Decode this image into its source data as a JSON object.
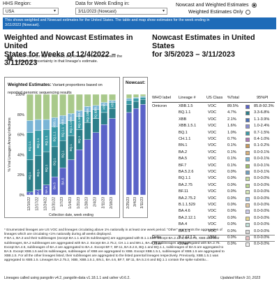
{
  "controls": {
    "region_label": "HHS Region:",
    "region_value": "USA",
    "week_label": "Data for Week Ending in:",
    "week_value": "3/11/2023 (Nowcast)",
    "radio_1": "Nowcast and Weighted Estimates",
    "radio_2": "Weighted Estimates Only"
  },
  "banner": {
    "line1": "This shows weighted and Nowcast estimates for the United States. The table and map show estimates for the week ending in",
    "line2": "3/11/2023 (Nowcast)."
  },
  "left": {
    "title_line1": "Weighted and Nowcast Estimates in United",
    "title_line2": "States for Weeks of 12/4/2022 – 3/11/2023",
    "hint_line1": "Hover over (or tap in mobile) any lineage of interest to see the",
    "hint_line2": "amount of uncertainty in that lineage's estimate."
  },
  "right": {
    "title_line1": "Nowcast Estimates in United States",
    "title_line2": "for 3/5/2023 – 3/11/2023"
  },
  "chart_data": {
    "type": "bar",
    "title": "Weighted Estimates: Variant proportions based on reported genomic sequencing results",
    "title_line1": "Weighted Estimates:",
    "title_line1_rest": " Variant proportions based on",
    "title_line2": "reported genomic sequencing results",
    "nowcast_title": "Nowcast:",
    "ylabel": "% Viral Lineages Among Infections",
    "xlabel": "Collection date, week ending",
    "ylim": [
      0,
      100
    ],
    "y_ticks": [
      "100%",
      "80%",
      "60%",
      "40%",
      "20%",
      "0%"
    ],
    "categories": [
      "12/10/22",
      "12/17/22",
      "12/24/22",
      "12/31/22",
      "1/7/23",
      "1/14/23",
      "1/21/23",
      "1/28/23",
      "2/4/23",
      "2/11/23",
      "2/18/23"
    ],
    "nowcast_categories": [
      "2/25/23",
      "3/4/23",
      "3/11/23"
    ],
    "series": [
      {
        "name": "XBB.1.5",
        "values": [
          3,
          5,
          10,
          18,
          27,
          35,
          45,
          55,
          62,
          70,
          76
        ],
        "nowcast": [
          82,
          86,
          90
        ]
      },
      {
        "name": "BQ.1.1",
        "values": [
          32,
          34,
          33,
          30,
          27,
          24,
          20,
          17,
          14,
          12,
          10
        ],
        "nowcast": [
          8,
          7,
          5
        ]
      },
      {
        "name": "BQ.1",
        "values": [
          27,
          25,
          22,
          20,
          17,
          15,
          13,
          11,
          9,
          7,
          6
        ],
        "nowcast": [
          4,
          3,
          2
        ]
      },
      {
        "name": "BA.5",
        "values": [
          12,
          11,
          10,
          9,
          8,
          7,
          6,
          5,
          4,
          3,
          2
        ],
        "nowcast": [
          2,
          1,
          1
        ]
      },
      {
        "name": "Other",
        "values": [
          26,
          25,
          25,
          23,
          21,
          19,
          16,
          12,
          11,
          8,
          6
        ],
        "nowcast": [
          4,
          3,
          2
        ]
      }
    ],
    "bar_labels": [
      [
        "BA.5",
        "BQ.1",
        "BQ.1.1",
        "",
        ""
      ],
      [
        "BA.5",
        "BQ.1",
        "BQ.1.1",
        "",
        ""
      ],
      [
        "BA.5",
        "BQ.1",
        "BQ.1.1",
        "",
        ""
      ],
      [
        "BA.5",
        "BQ.1",
        "BQ.1.1",
        "XBB.1.5",
        ""
      ],
      [
        "BA.5",
        "BQ.1",
        "BQ.1.1",
        "XBB.1.5",
        ""
      ],
      [
        "",
        "BQ.1",
        "BQ.1.1",
        "XBB.1.5",
        ""
      ],
      [
        "",
        "BQ.1",
        "BQ.1.1",
        "XBB.1.5",
        ""
      ],
      [
        "",
        "",
        "BQ.1.1",
        "XBB.1.5",
        ""
      ],
      [
        "",
        "",
        "BQ.1.1",
        "XBB.1.5",
        ""
      ],
      [
        "",
        "",
        "",
        "XBB.1.5",
        ""
      ],
      [
        "",
        "",
        "",
        "XBB.1.5",
        ""
      ]
    ],
    "colors": {
      "XBB.1.5": "#5a63c8",
      "BQ.1.1": "#2d7f8a",
      "BQ.1": "#3a9aa6",
      "BA.5": "#7ab5d6",
      "Other": "#a9c98b",
      "other_segments": [
        "#9fbf6b",
        "#b9d68f",
        "#c4da9d",
        "#6f9fbf",
        "#d3e5b6"
      ]
    }
  },
  "table": {
    "headers": [
      "WHO label",
      "Lineage #",
      "US Class",
      "%Total",
      "95%PI"
    ],
    "rows": [
      {
        "who": "Omicron",
        "lineage": "XBB.1.5",
        "class": "VOC",
        "pct": "89.5%",
        "pi": "85.8-92.3%",
        "color": "#5a63c8"
      },
      {
        "who": "",
        "lineage": "BQ.1.1",
        "class": "VOC",
        "pct": "4.7%",
        "pi": "3.3-6.8%",
        "color": "#2d7f8a"
      },
      {
        "who": "",
        "lineage": "XBB",
        "class": "VOC",
        "pct": "2.1%",
        "pi": "1.1-3.9%",
        "color": "#4a70b8"
      },
      {
        "who": "",
        "lineage": "XBB.1.5.1",
        "class": "VOC",
        "pct": "1.6%",
        "pi": "1.0-2.4%",
        "color": "#8a8fd4"
      },
      {
        "who": "",
        "lineage": "BQ.1",
        "class": "VOC",
        "pct": "1.0%",
        "pi": "0.7-1.5%",
        "color": "#3a9aa6"
      },
      {
        "who": "",
        "lineage": "CH.1.1",
        "class": "VOC",
        "pct": "0.7%",
        "pi": "0.4-1.0%",
        "color": "#b07ab8"
      },
      {
        "who": "",
        "lineage": "BN.1",
        "class": "VOC",
        "pct": "0.1%",
        "pi": "0.1-0.2%",
        "color": "#c89a5a"
      },
      {
        "who": "",
        "lineage": "BA.2",
        "class": "VOC",
        "pct": "0.1%",
        "pi": "0.0-0.1%",
        "color": "#d8b07a"
      },
      {
        "who": "",
        "lineage": "BA.5",
        "class": "VOC",
        "pct": "0.1%",
        "pi": "0.0-0.1%",
        "color": "#7ab5d6"
      },
      {
        "who": "",
        "lineage": "BF.7",
        "class": "VOC",
        "pct": "0.1%",
        "pi": "0.0-0.1%",
        "color": "#9fbf6b"
      },
      {
        "who": "",
        "lineage": "BA.5.2.6",
        "class": "VOC",
        "pct": "0.0%",
        "pi": "0.0-0.1%",
        "color": "#6f9fbf"
      },
      {
        "who": "",
        "lineage": "BQ.1.1",
        "class": "VOC",
        "pct": "0.0%",
        "pi": "0.0-0.0%",
        "color": "#c4da9d"
      },
      {
        "who": "",
        "lineage": "BA.2.75",
        "class": "VOC",
        "pct": "0.0%",
        "pi": "0.0-0.0%",
        "color": "#b9d68f"
      },
      {
        "who": "",
        "lineage": "BF.11",
        "class": "VOC",
        "pct": "0.0%",
        "pi": "0.0-0.0%",
        "color": "#d3e5b6"
      },
      {
        "who": "",
        "lineage": "BA.2.75.2",
        "class": "VOC",
        "pct": "0.0%",
        "pi": "0.0-0.0%",
        "color": "#a7c7e7"
      },
      {
        "who": "",
        "lineage": "B.1.1.529",
        "class": "VOC",
        "pct": "0.0%",
        "pi": "0.0-0.0%",
        "color": "#e0c6a0"
      },
      {
        "who": "",
        "lineage": "BA.4.6",
        "class": "VOC",
        "pct": "0.0%",
        "pi": "0.0-0.0%",
        "color": "#c9c9e8"
      },
      {
        "who": "",
        "lineage": "BA.2.12.1",
        "class": "VOC",
        "pct": "0.0%",
        "pi": "0.0-0.0%",
        "color": "#e2d38f"
      },
      {
        "who": "",
        "lineage": "BA.4",
        "class": "VOC",
        "pct": "0.0%",
        "pi": "0.0-0.0%",
        "color": "#bfe0d8"
      },
      {
        "who": "",
        "lineage": "BA.1.1",
        "class": "VOC",
        "pct": "0.0%",
        "pi": "0.0-0.0%",
        "color": "#d7d7d7"
      },
      {
        "who": "Delta",
        "lineage": "B.1.617.2",
        "class": "VBM",
        "pct": "0.0%",
        "pi": "0.0-0.0%",
        "color": "#e8c1c1"
      },
      {
        "who": "Other",
        "lineage": "Other*",
        "class": "",
        "pct": "0.0%",
        "pi": "0.0-0.0%",
        "color": "#eeeeee"
      }
    ]
  },
  "footnotes": {
    "f1": "*    Enumerated lineages are US VOC and lineages circulating above 1% nationally in at least one week period. \"Other\" represents the aggregation of",
    "f2": "lineages which are circulating <1% nationally during all weeks displayed.",
    "f3": "#     BA.1, BA.3 and their sublineages (except BA.1.1 and its sublineages) are aggregated with B.1.1.529. Except BA.2.12.1, BA.2.75, XBB and their",
    "f4": "sublineages, BA.2 sublineages are aggregated with BA.2. Except BA.2.75.2, CH.1.1 and BN.1, BA.2.75 sublineages are aggregated with BA.2.75.",
    "f5": "Except BA.4.6, sublineages of BA.4 are aggregated to BA.4. Except BF.7, BF.11, BA.5.2.6, BQ.1 and BQ.1.1, sublineages of BA.5 are aggregated to",
    "f6": "BA.5. Except XBB.1.5 and its sublineages, sublineages of XBB are aggregated to XBB. Except XBB.1.5.1, sublineages of XBB.1.5 are aggregated to",
    "f7": "XBB.1.5. For all the other lineages listed, their sublineages are aggregated to the listed parental lineages respectively. Previously, XBB.1.5.1 was",
    "f8": "aggregated to XBB.1.5. Lineages BA.2.75.2, XBB, XBB.1.5.1, BN.1, BA.4.6, BF.7, BF.11, BA.5.2.6 and BQ.1.1 contain the spike substitu...",
    "pangolin": "Lineages called using pangolin v4.2, pangolin-data v1.18.1.1  and usher v0.6.2.",
    "updated": "Updated March 10, 2023"
  }
}
